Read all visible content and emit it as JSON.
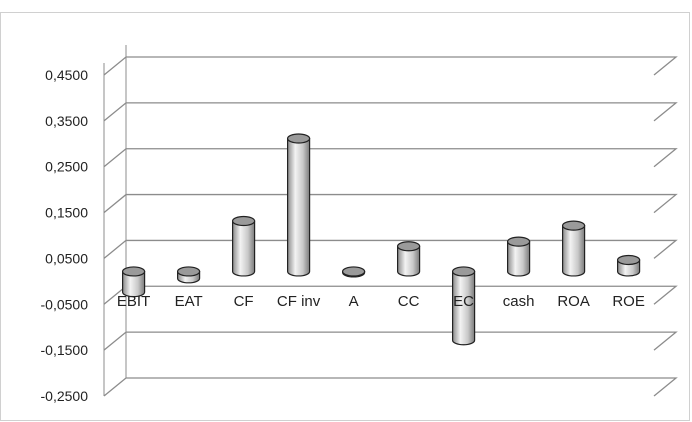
{
  "chart_data": {
    "type": "bar",
    "style": "3d-cylinder",
    "categories": [
      "EBIT",
      "EAT",
      "CF",
      "CF inv",
      "A",
      "CC",
      "EC",
      "cash",
      "ROA",
      "ROE"
    ],
    "values": [
      -0.045,
      -0.015,
      0.11,
      0.29,
      -0.002,
      0.055,
      -0.15,
      0.065,
      0.1,
      0.025
    ],
    "y_ticks": [
      "0,4500",
      "0,3500",
      "0,2500",
      "0,1500",
      "0,0500",
      "-0,0500",
      "-0,1500",
      "-0,2500"
    ],
    "y_tick_values": [
      0.45,
      0.35,
      0.25,
      0.15,
      0.05,
      -0.05,
      -0.15,
      -0.25
    ],
    "ylim": [
      -0.25,
      0.45
    ],
    "grid": true,
    "legend": false,
    "title": "",
    "xlabel": "",
    "ylabel": "",
    "colors": {
      "bar_light": "#f2f2f2",
      "bar_mid": "#c4c4c4",
      "bar_dark": "#7f7f7f",
      "grid": "#8c8c8c",
      "top": "#9a9a9a"
    }
  }
}
